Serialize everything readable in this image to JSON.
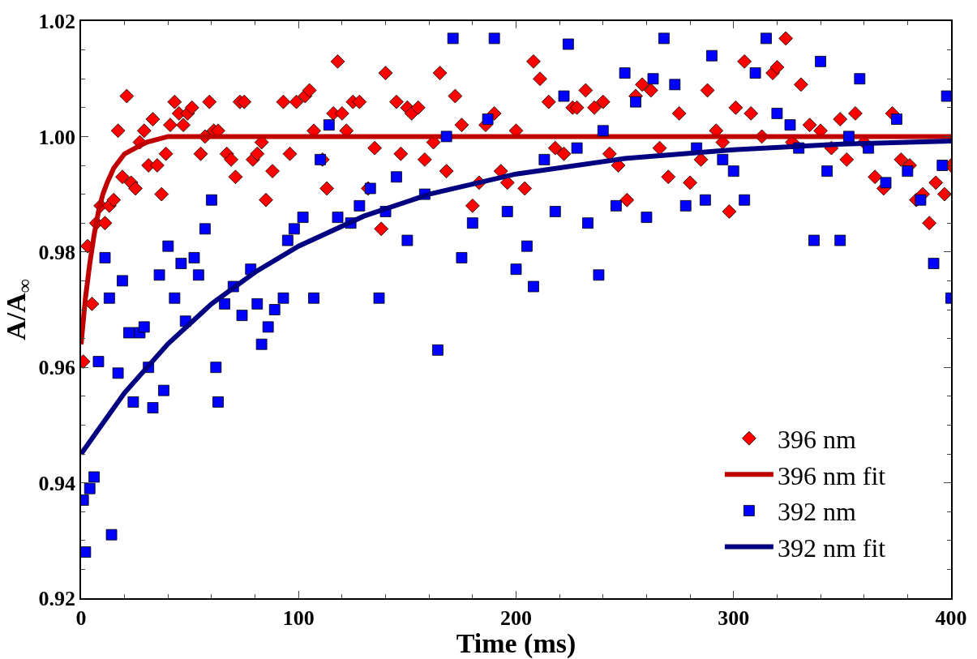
{
  "chart_data": {
    "type": "scatter",
    "xlabel": "Time (ms)",
    "ylabel": "A/A$_{∞}$",
    "xlim": [
      0,
      400
    ],
    "xticks": [
      0,
      100,
      200,
      300,
      400
    ],
    "ylim": [
      0.92,
      1.02
    ],
    "yticks": [
      0.92,
      0.94,
      0.96,
      0.98,
      {
        "value": 1.0,
        "label": "1.00"
      },
      1.02
    ],
    "legend": "bottom right",
    "series": [
      {
        "name": "396 nm",
        "marker": "diamond",
        "color": "#ff0000",
        "x": [
          1,
          3,
          5,
          7,
          9,
          11,
          13,
          15,
          17,
          19,
          21,
          23,
          25,
          27,
          29,
          31,
          33,
          35,
          37,
          39,
          41,
          43,
          45,
          47,
          49,
          51,
          55,
          57,
          59,
          61,
          63,
          67,
          69,
          71,
          73,
          75,
          79,
          81,
          83,
          85,
          88,
          93,
          96,
          99,
          103,
          105,
          107,
          111,
          113,
          116,
          118,
          120,
          122,
          125,
          128,
          132,
          135,
          138,
          140,
          145,
          147,
          150,
          152,
          155,
          158,
          162,
          165,
          168,
          172,
          175,
          180,
          183,
          186,
          190,
          193,
          196,
          200,
          204,
          208,
          211,
          215,
          218,
          222,
          226,
          228,
          232,
          236,
          240,
          243,
          247,
          251,
          255,
          258,
          262,
          266,
          270,
          275,
          280,
          285,
          288,
          292,
          295,
          298,
          301,
          305,
          308,
          313,
          318,
          320,
          324,
          327,
          331,
          335,
          340,
          345,
          349,
          352,
          356,
          360,
          365,
          369,
          373,
          377,
          381,
          384,
          387,
          390,
          393,
          397,
          400
        ],
        "values": [
          0.961,
          0.981,
          0.971,
          0.985,
          0.988,
          0.985,
          0.988,
          0.989,
          1.001,
          0.993,
          1.007,
          0.992,
          0.991,
          0.999,
          1.001,
          0.995,
          1.003,
          0.995,
          0.99,
          0.997,
          1.002,
          1.006,
          1.004,
          1.002,
          1.004,
          1.005,
          0.997,
          1.0,
          1.006,
          1.001,
          1.001,
          0.997,
          0.996,
          0.993,
          1.006,
          1.006,
          0.996,
          0.997,
          0.999,
          0.989,
          0.994,
          1.006,
          0.997,
          1.006,
          1.007,
          1.008,
          1.001,
          0.996,
          0.991,
          1.004,
          1.013,
          1.004,
          1.001,
          1.006,
          1.006,
          0.991,
          0.998,
          0.984,
          1.011,
          1.006,
          0.997,
          1.005,
          1.004,
          1.005,
          0.996,
          0.999,
          1.011,
          0.994,
          1.007,
          1.002,
          0.988,
          0.992,
          1.002,
          1.004,
          0.994,
          0.992,
          1.001,
          0.991,
          1.013,
          1.01,
          1.006,
          0.998,
          0.997,
          1.005,
          1.005,
          1.008,
          1.005,
          1.006,
          0.997,
          0.995,
          0.989,
          1.007,
          1.009,
          1.008,
          0.998,
          0.993,
          1.004,
          0.992,
          0.996,
          1.008,
          1.001,
          0.999,
          0.987,
          1.005,
          1.013,
          1.004,
          1.0,
          1.011,
          1.012,
          1.017,
          0.999,
          1.009,
          1.002,
          1.001,
          0.998,
          1.003,
          0.996,
          1.004,
          0.999,
          0.993,
          0.991,
          1.004,
          0.996,
          0.995,
          0.989,
          0.99,
          0.985,
          0.992,
          0.99,
          0.995
        ]
      },
      {
        "name": "396 nm fit",
        "type": "line",
        "marker": "none",
        "color": "#c00000",
        "x": [
          0,
          2,
          4,
          6,
          8,
          10,
          12,
          15,
          20,
          25,
          30,
          40,
          100,
          200,
          300,
          400
        ],
        "values": [
          0.964,
          0.972,
          0.978,
          0.983,
          0.987,
          0.99,
          0.992,
          0.9945,
          0.997,
          0.998,
          0.999,
          1.0,
          1.0,
          1.0,
          1.0,
          1.0
        ]
      },
      {
        "name": "392 nm",
        "marker": "square",
        "color": "#0000ff",
        "x": [
          1,
          2,
          4,
          6,
          8,
          11,
          13,
          14,
          17,
          19,
          22,
          24,
          27,
          29,
          31,
          33,
          36,
          38,
          40,
          43,
          46,
          48,
          52,
          54,
          57,
          60,
          62,
          63,
          66,
          70,
          74,
          78,
          81,
          83,
          86,
          89,
          93,
          95,
          98,
          102,
          107,
          110,
          114,
          118,
          124,
          128,
          133,
          137,
          140,
          145,
          150,
          158,
          164,
          168,
          171,
          175,
          180,
          187,
          190,
          196,
          200,
          205,
          208,
          213,
          218,
          222,
          224,
          228,
          233,
          238,
          240,
          246,
          250,
          255,
          260,
          263,
          268,
          273,
          278,
          283,
          287,
          290,
          295,
          300,
          305,
          310,
          315,
          320,
          326,
          330,
          337,
          340,
          343,
          349,
          353,
          358,
          362,
          370,
          375,
          380,
          386,
          392,
          396,
          398,
          400
        ],
        "values": [
          0.937,
          0.928,
          0.939,
          0.941,
          0.961,
          0.979,
          0.972,
          0.931,
          0.959,
          0.975,
          0.966,
          0.954,
          0.966,
          0.967,
          0.96,
          0.953,
          0.976,
          0.956,
          0.981,
          0.972,
          0.978,
          0.968,
          0.979,
          0.976,
          0.984,
          0.989,
          0.96,
          0.954,
          0.971,
          0.974,
          0.969,
          0.977,
          0.971,
          0.964,
          0.967,
          0.97,
          0.972,
          0.982,
          0.984,
          0.986,
          0.972,
          0.996,
          1.002,
          0.986,
          0.985,
          0.988,
          0.991,
          0.972,
          0.987,
          0.993,
          0.982,
          0.99,
          0.963,
          1.0,
          1.017,
          0.979,
          0.985,
          1.003,
          1.017,
          0.987,
          0.977,
          0.981,
          0.974,
          0.996,
          0.987,
          1.007,
          1.016,
          0.998,
          0.985,
          0.976,
          1.001,
          0.988,
          1.011,
          1.006,
          0.986,
          1.01,
          1.017,
          1.009,
          0.988,
          0.998,
          0.989,
          1.014,
          0.996,
          0.994,
          0.989,
          1.011,
          1.017,
          1.004,
          1.002,
          0.998,
          0.982,
          1.013,
          0.994,
          0.982,
          1.0,
          1.01,
          0.998,
          0.992,
          1.003,
          0.994,
          0.989,
          0.978,
          0.995,
          1.007,
          0.972
        ]
      },
      {
        "name": "392 nm fit",
        "type": "line",
        "marker": "none",
        "color": "#000080",
        "x": [
          0,
          20,
          40,
          60,
          80,
          100,
          130,
          160,
          200,
          250,
          300,
          350,
          400
        ],
        "values": [
          0.945,
          0.9556,
          0.9641,
          0.971,
          0.9765,
          0.981,
          0.9862,
          0.99,
          0.9935,
          0.9962,
          0.9977,
          0.9987,
          0.9992
        ]
      }
    ]
  }
}
